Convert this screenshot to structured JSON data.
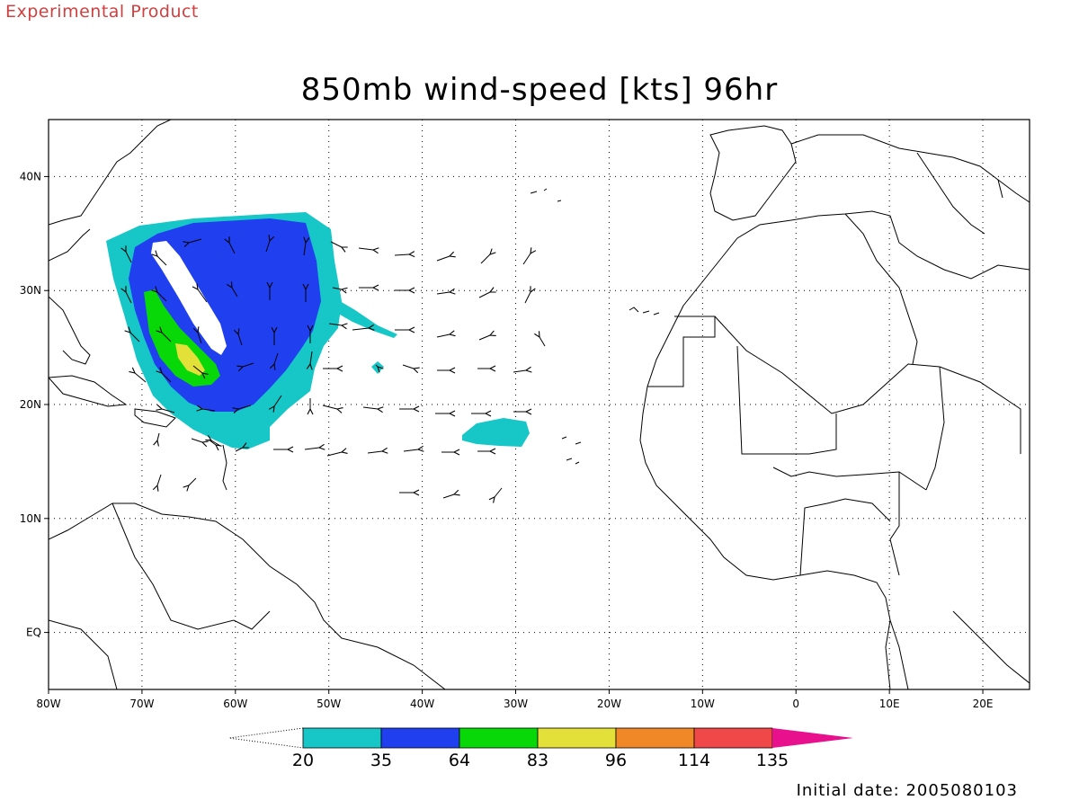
{
  "header": {
    "product_label": "Experimental Product",
    "title": "850mb wind-speed [kts] 96hr",
    "initial_date": "Initial date: 2005080103"
  },
  "map": {
    "projection": "lat-lon",
    "lon_range": [
      -80,
      25
    ],
    "lat_range": [
      -5,
      45
    ],
    "lon_ticks": [
      {
        "value": -80,
        "label": "80W"
      },
      {
        "value": -70,
        "label": "70W"
      },
      {
        "value": -60,
        "label": "60W"
      },
      {
        "value": -50,
        "label": "50W"
      },
      {
        "value": -40,
        "label": "40W"
      },
      {
        "value": -30,
        "label": "30W"
      },
      {
        "value": -20,
        "label": "20W"
      },
      {
        "value": -10,
        "label": "10W"
      },
      {
        "value": 0,
        "label": "0"
      },
      {
        "value": 10,
        "label": "10E"
      },
      {
        "value": 20,
        "label": "20E"
      }
    ],
    "lat_ticks": [
      {
        "value": 40,
        "label": "40N"
      },
      {
        "value": 30,
        "label": "30N"
      },
      {
        "value": 20,
        "label": "20N"
      },
      {
        "value": 10,
        "label": "10N"
      },
      {
        "value": 0,
        "label": "EQ"
      }
    ],
    "grid": "dotted",
    "overlays": [
      "coastlines",
      "country-borders",
      "wind-vectors",
      "filled-contours"
    ]
  },
  "colorbar": {
    "levels": [
      "20",
      "35",
      "64",
      "83",
      "96",
      "114",
      "135"
    ],
    "colors": [
      "#17c6c6",
      "#2040f0",
      "#08d808",
      "#e4e03a",
      "#f08828",
      "#f04848",
      "#e8108c"
    ],
    "extend": "both"
  }
}
